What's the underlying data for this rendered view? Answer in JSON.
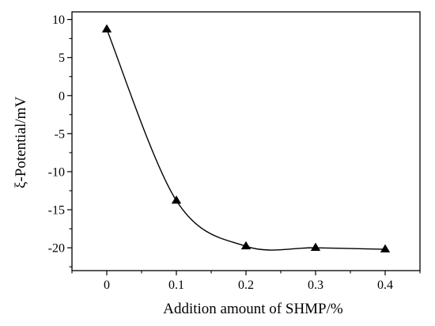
{
  "chart_data": {
    "type": "line",
    "xlabel": "Addition amount of SHMP/%",
    "ylabel": "ξ-Potential/mV",
    "xlim": [
      -0.05,
      0.45
    ],
    "ylim": [
      -23,
      11
    ],
    "x_ticks": [
      0,
      0.1,
      0.2,
      0.3,
      0.4
    ],
    "x_tick_labels": [
      "0",
      "0.1",
      "0.2",
      "0.3",
      "0.4"
    ],
    "y_ticks": [
      10,
      5,
      0,
      -5,
      -10,
      -15,
      -20
    ],
    "y_tick_labels": [
      "10",
      "5",
      "0",
      "-5",
      "-10",
      "-15",
      "-20"
    ],
    "grid": false,
    "marker": "triangle",
    "colors": {
      "series": "#000000",
      "axis": "#000000"
    },
    "series": [
      {
        "x": [
          0,
          0.1,
          0.2,
          0.3,
          0.4
        ],
        "y": [
          8.7,
          -13.8,
          -19.8,
          -20.0,
          -20.2
        ]
      }
    ]
  }
}
